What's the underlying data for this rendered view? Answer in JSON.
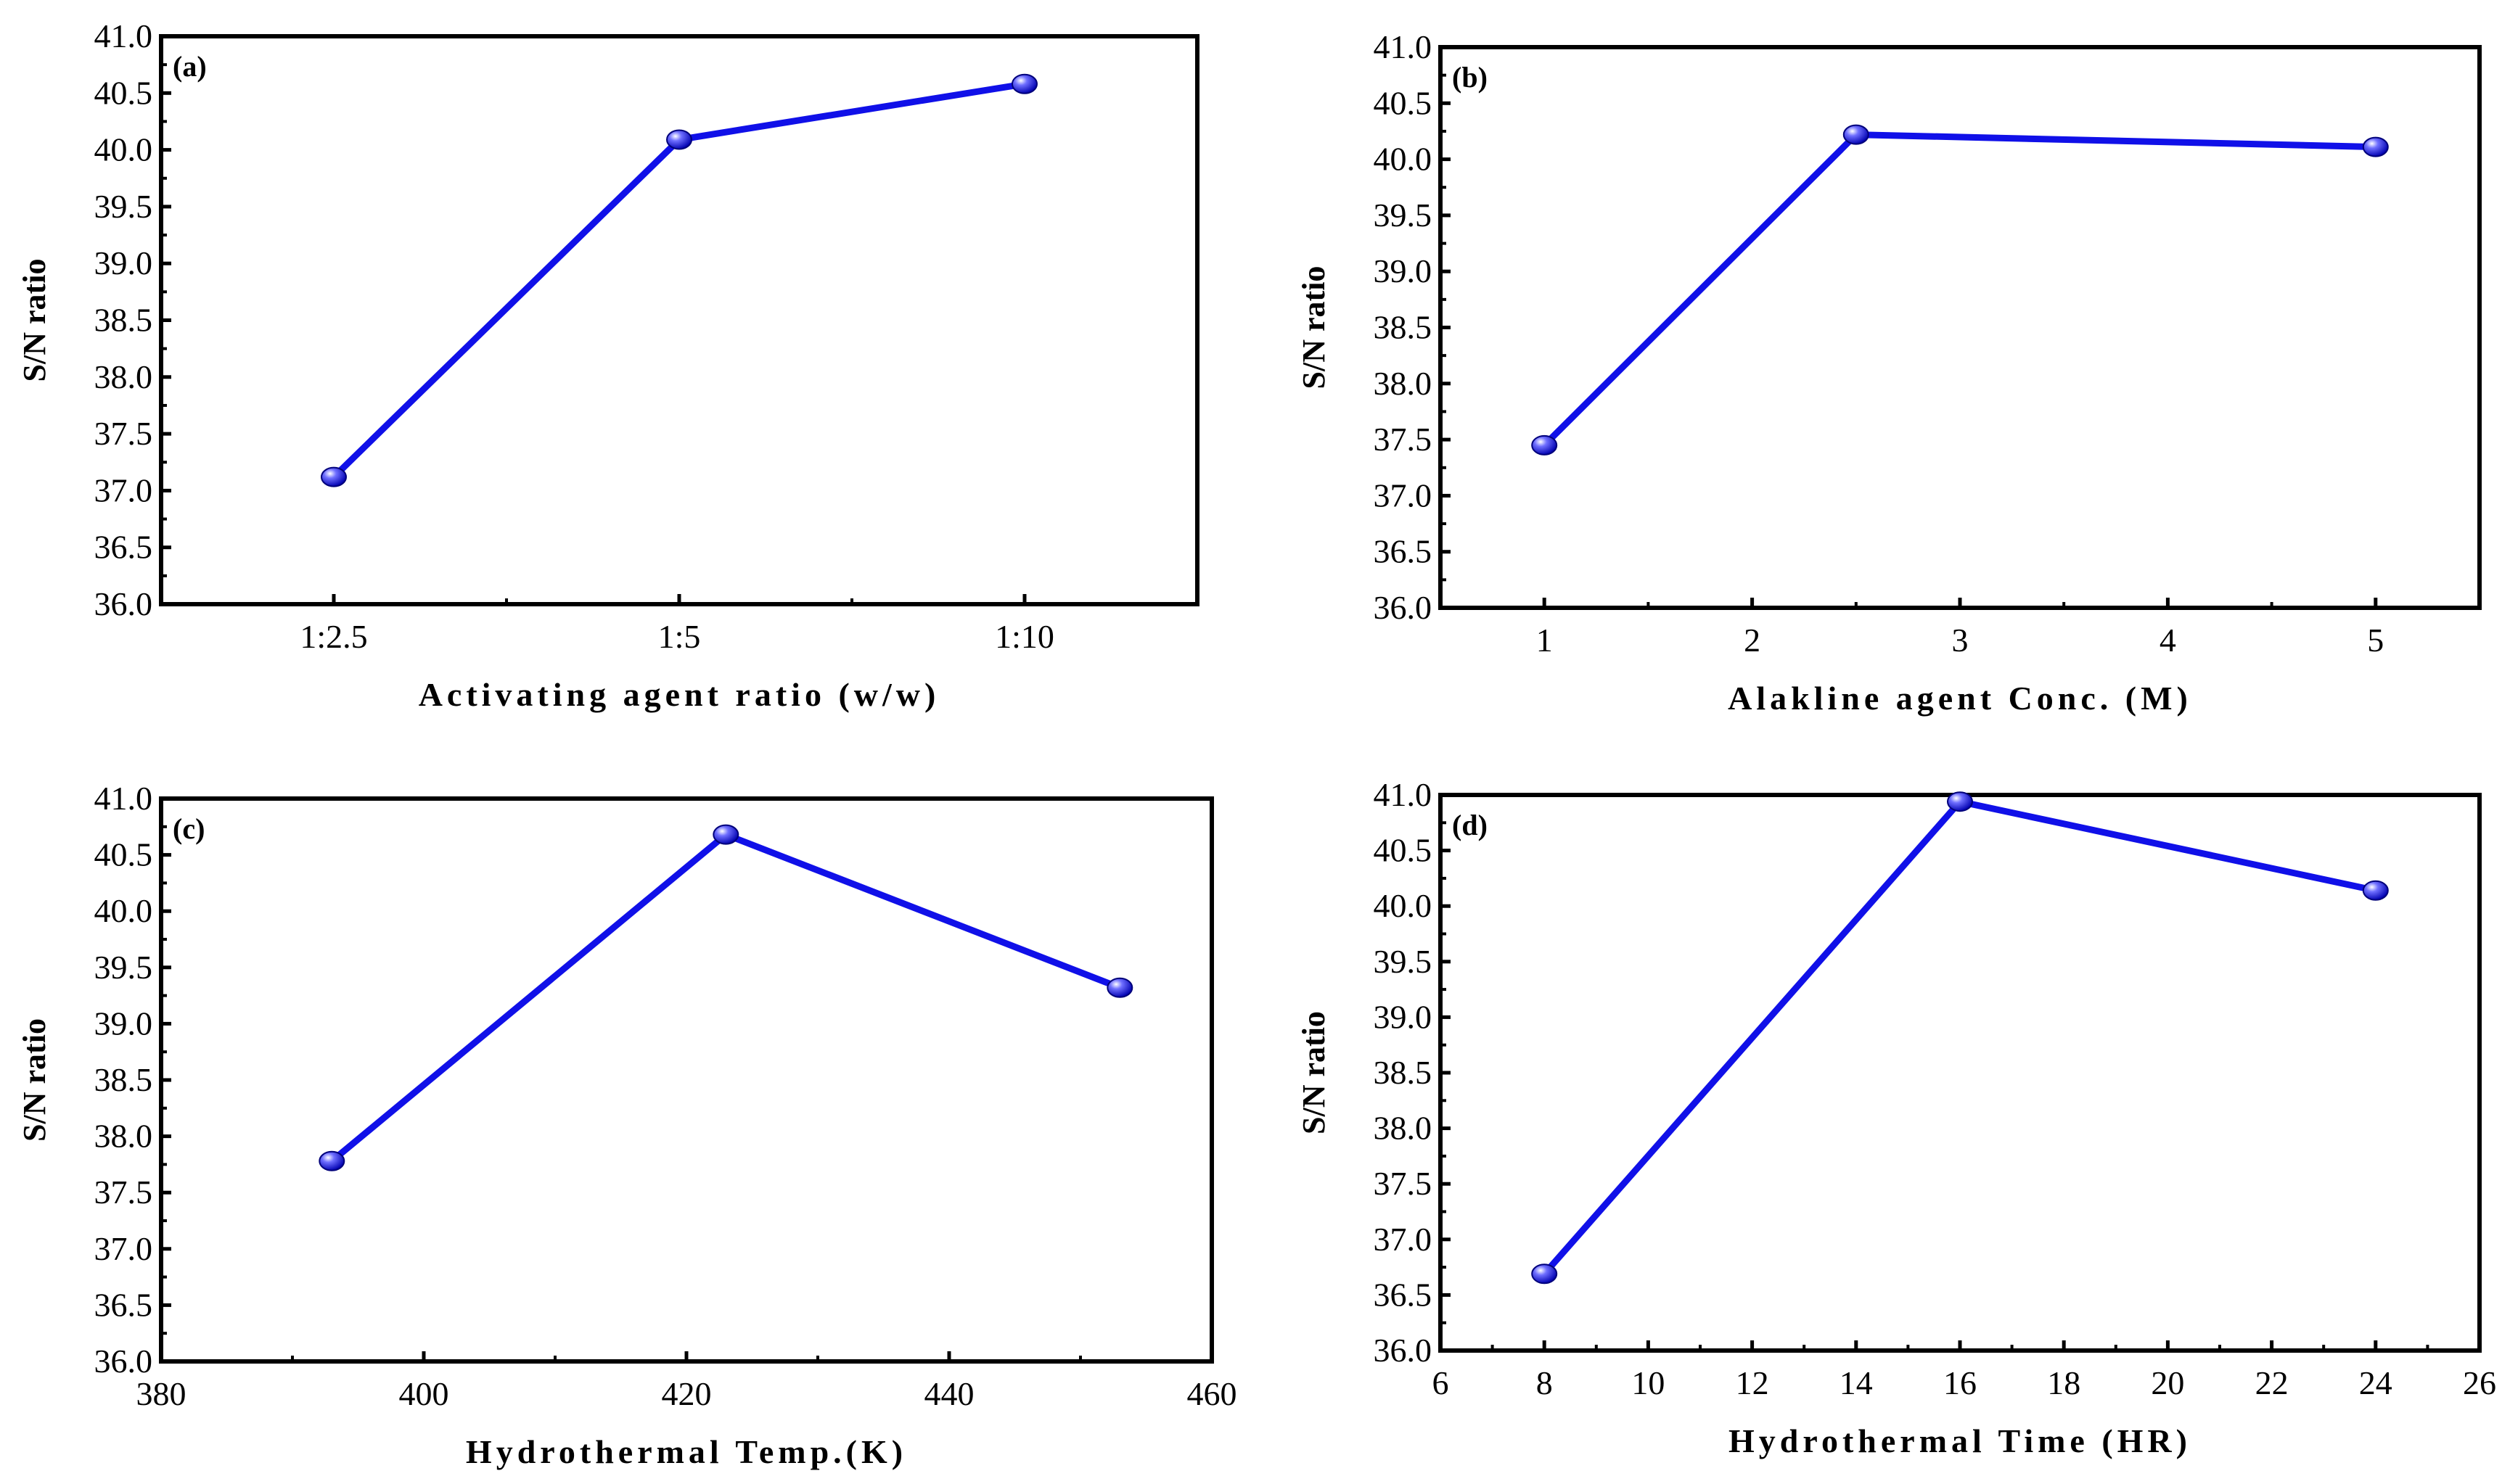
{
  "colors": {
    "series": "#1010e8",
    "axis": "#000000",
    "background": "#ffffff"
  },
  "chart_data": [
    {
      "type": "line",
      "panel": "(a)",
      "xlabel": "Activating agent ratio (w/w)",
      "ylabel": "S/N ratio",
      "x_categorical": true,
      "categories": [
        "1:2.5",
        "1:5",
        "1:10"
      ],
      "x": [
        1,
        2,
        3
      ],
      "xlim": [
        0.5,
        3.5
      ],
      "xticks": [
        1,
        2,
        3
      ],
      "xtick_labels": [
        "1:2.5",
        "1:5",
        "1:10"
      ],
      "xminor": [
        1.5,
        2.5
      ],
      "values": [
        37.12,
        40.09,
        40.58
      ],
      "ylim": [
        36.0,
        41.0
      ],
      "yticks": [
        36.0,
        36.5,
        37.0,
        37.5,
        38.0,
        38.5,
        39.0,
        39.5,
        40.0,
        40.5,
        41.0
      ],
      "ytick_labels": [
        "36.0",
        "36.5",
        "37.0",
        "37.5",
        "38.0",
        "38.5",
        "39.0",
        "39.5",
        "40.0",
        "40.5",
        "41.0"
      ]
    },
    {
      "type": "line",
      "panel": "(b)",
      "xlabel": "Alakline agent Conc. (M)",
      "ylabel": "S/N ratio",
      "x": [
        1,
        2.5,
        5
      ],
      "xlim": [
        0.5,
        5.5
      ],
      "xticks": [
        1,
        2,
        3,
        4,
        5
      ],
      "xtick_labels": [
        "1",
        "2",
        "3",
        "4",
        "5"
      ],
      "xminor": [
        1.5,
        2.5,
        3.5,
        4.5
      ],
      "values": [
        37.45,
        40.22,
        40.11
      ],
      "ylim": [
        36.0,
        41.0
      ],
      "yticks": [
        36.0,
        36.5,
        37.0,
        37.5,
        38.0,
        38.5,
        39.0,
        39.5,
        40.0,
        40.5,
        41.0
      ],
      "ytick_labels": [
        "36.0",
        "36.5",
        "37.0",
        "37.5",
        "38.0",
        "38.5",
        "39.0",
        "39.5",
        "40.0",
        "40.5",
        "41.0"
      ]
    },
    {
      "type": "line",
      "panel": "(c)",
      "xlabel": "Hydrothermal Temp.(K)",
      "ylabel": "S/N ratio",
      "x": [
        393,
        423,
        453
      ],
      "xlim": [
        380,
        460
      ],
      "xticks": [
        380,
        400,
        420,
        440,
        460
      ],
      "xtick_labels": [
        "380",
        "400",
        "420",
        "440",
        "460"
      ],
      "xminor": [
        390,
        410,
        430,
        450
      ],
      "values": [
        37.78,
        40.68,
        39.32
      ],
      "ylim": [
        36.0,
        41.0
      ],
      "yticks": [
        36.0,
        36.5,
        37.0,
        37.5,
        38.0,
        38.5,
        39.0,
        39.5,
        40.0,
        40.5,
        41.0
      ],
      "ytick_labels": [
        "36.0",
        "36.5",
        "37.0",
        "37.5",
        "38.0",
        "38.5",
        "39.0",
        "39.5",
        "40.0",
        "40.5",
        "41.0"
      ]
    },
    {
      "type": "line",
      "panel": "(d)",
      "xlabel": "Hydrothermal Time (HR)",
      "ylabel": "S/N ratio",
      "x": [
        8,
        16,
        24
      ],
      "xlim": [
        6,
        26
      ],
      "xticks": [
        6,
        8,
        10,
        12,
        14,
        16,
        18,
        20,
        22,
        24,
        26
      ],
      "xtick_labels": [
        "6",
        "8",
        "10",
        "12",
        "14",
        "16",
        "18",
        "20",
        "22",
        "24",
        "26"
      ],
      "xminor": [
        7,
        9,
        11,
        13,
        15,
        17,
        19,
        21,
        23,
        25
      ],
      "values": [
        36.69,
        40.94,
        40.14
      ],
      "ylim": [
        36.0,
        41.0
      ],
      "yticks": [
        36.0,
        36.5,
        37.0,
        37.5,
        38.0,
        38.5,
        39.0,
        39.5,
        40.0,
        40.5,
        41.0
      ],
      "ytick_labels": [
        "36.0",
        "36.5",
        "37.0",
        "37.5",
        "38.0",
        "38.5",
        "39.0",
        "39.5",
        "40.0",
        "40.5",
        "41.0"
      ]
    }
  ]
}
